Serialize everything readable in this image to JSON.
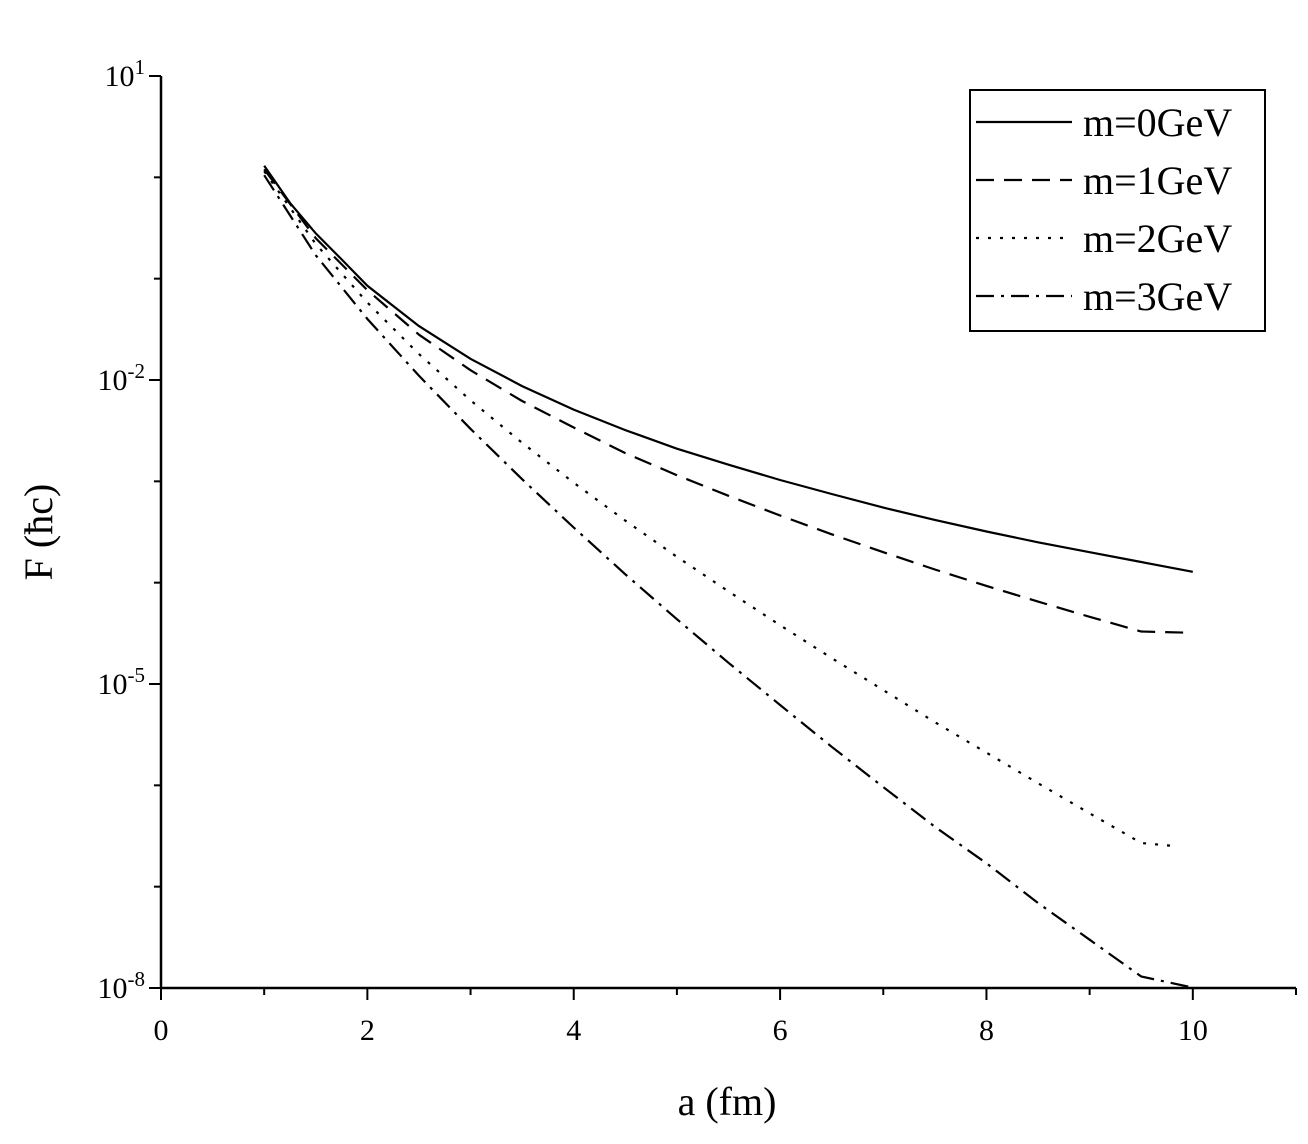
{
  "chart_data": {
    "type": "line",
    "xlabel": "a (fm)",
    "ylabel": "F (ħc)",
    "xlim": [
      0,
      11
    ],
    "ylim": [
      1e-08,
      10
    ],
    "yscale": "log",
    "xticks": [
      0,
      2,
      4,
      6,
      8,
      10
    ],
    "yticks": [
      {
        "value": 10,
        "base": "10",
        "exp": "1"
      },
      {
        "value": 0.01,
        "base": "10",
        "exp": "-2"
      },
      {
        "value": 1e-05,
        "base": "10",
        "exp": "-5"
      },
      {
        "value": 1e-08,
        "base": "10",
        "exp": "-8"
      }
    ],
    "legend_position": "top-right",
    "series": [
      {
        "name": "m=0GeV",
        "style": "solid",
        "x": [
          1.0,
          1.25,
          1.5,
          1.75,
          2.0,
          2.5,
          3.0,
          3.5,
          4.0,
          4.5,
          5.0,
          5.5,
          6.0,
          6.5,
          7.0,
          7.5,
          8.0,
          8.5,
          9.0,
          9.5,
          10.0
        ],
        "y": [
          1.3,
          0.56,
          0.28,
          0.155,
          0.085,
          0.034,
          0.0162,
          0.0087,
          0.0051,
          0.0032,
          0.0021,
          0.00146,
          0.00103,
          0.00075,
          0.00055,
          0.000416,
          0.00032,
          0.00025,
          0.0002,
          0.00016,
          0.000128
        ]
      },
      {
        "name": "m=1GeV",
        "style": "dashed",
        "x": [
          1.0,
          1.5,
          2.0,
          2.5,
          3.0,
          3.5,
          4.0,
          4.5,
          5.0,
          5.5,
          6.0,
          6.5,
          7.0,
          7.5,
          8.0,
          8.5,
          9.0,
          9.5,
          10.0
        ],
        "y": [
          1.2,
          0.25,
          0.077,
          0.028,
          0.0125,
          0.0062,
          0.0034,
          0.0019,
          0.00115,
          0.00072,
          0.00046,
          0.0003,
          0.0002,
          0.000135,
          9.3e-05,
          6.5e-05,
          4.6e-05,
          3.3e-05,
          3.2e-05
        ]
      },
      {
        "name": "m=2GeV",
        "style": "dotted",
        "x": [
          1.0,
          1.5,
          2.0,
          2.5,
          3.0,
          3.5,
          4.0,
          4.5,
          5.0,
          5.5,
          6.0,
          6.5,
          7.0,
          7.5,
          8.0,
          8.5,
          9.0,
          9.5,
          9.85
        ],
        "y": [
          1.15,
          0.22,
          0.058,
          0.018,
          0.0063,
          0.0024,
          0.00097,
          0.00041,
          0.00018,
          8.2e-05,
          3.8e-05,
          1.8e-05,
          8.7e-06,
          4.2e-06,
          2.1e-06,
          1.05e-06,
          5.3e-07,
          2.7e-07,
          2.5e-07
        ]
      },
      {
        "name": "m=3GeV",
        "style": "dashdot",
        "x": [
          1.0,
          1.5,
          2.0,
          2.5,
          3.0,
          3.5,
          4.0,
          4.5,
          5.0,
          5.5,
          6.0,
          6.5,
          7.0,
          7.5,
          8.0,
          8.5,
          9.0,
          9.5,
          10.0
        ],
        "y": [
          1.05,
          0.17,
          0.04,
          0.011,
          0.0033,
          0.00105,
          0.00035,
          0.000121,
          4.36e-05,
          1.62e-05,
          6.2e-06,
          2.4e-06,
          9.6e-07,
          3.9e-07,
          1.7e-07,
          6.9e-08,
          3e-08,
          1.3e-08,
          1.01e-08
        ]
      }
    ]
  }
}
